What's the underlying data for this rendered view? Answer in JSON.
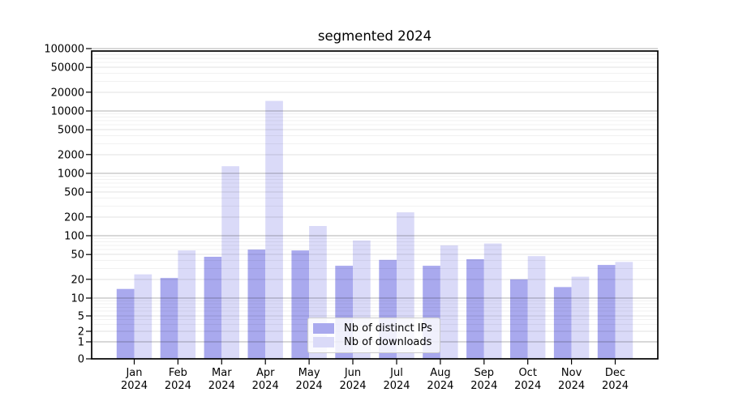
{
  "chart_data": {
    "type": "bar",
    "title": "segmented 2024",
    "x_year": "2024",
    "categories": [
      "Jan",
      "Feb",
      "Mar",
      "Apr",
      "May",
      "Jun",
      "Jul",
      "Aug",
      "Sep",
      "Oct",
      "Nov",
      "Dec"
    ],
    "series": [
      {
        "name": "Nb of distinct IPs",
        "color": "#a9a9ee",
        "values": [
          14,
          21,
          46,
          60,
          58,
          33,
          41,
          33,
          42,
          20,
          15,
          34
        ]
      },
      {
        "name": "Nb of downloads",
        "color": "#dadaf8",
        "values": [
          24,
          58,
          1300,
          14500,
          143,
          84,
          237,
          70,
          75,
          47,
          22,
          38
        ]
      }
    ],
    "yscale": "log-like (symlog, linear segment below 1)",
    "y_ticks": [
      0,
      1,
      2,
      5,
      10,
      20,
      50,
      100,
      200,
      500,
      1000,
      2000,
      5000,
      10000,
      20000,
      50000,
      100000
    ],
    "ylim": [
      0,
      100000
    ],
    "xlabel": "",
    "ylabel": "",
    "grid": true,
    "legend_position": "lower center",
    "colors": {
      "axis": "#000000",
      "text": "#000000",
      "grid_major": "rgba(0,0,0,0.30)",
      "grid_labeled": "rgba(0,0,0,0.12)",
      "grid_minor": "rgba(0,0,0,0.055)",
      "background": "#ffffff"
    }
  }
}
